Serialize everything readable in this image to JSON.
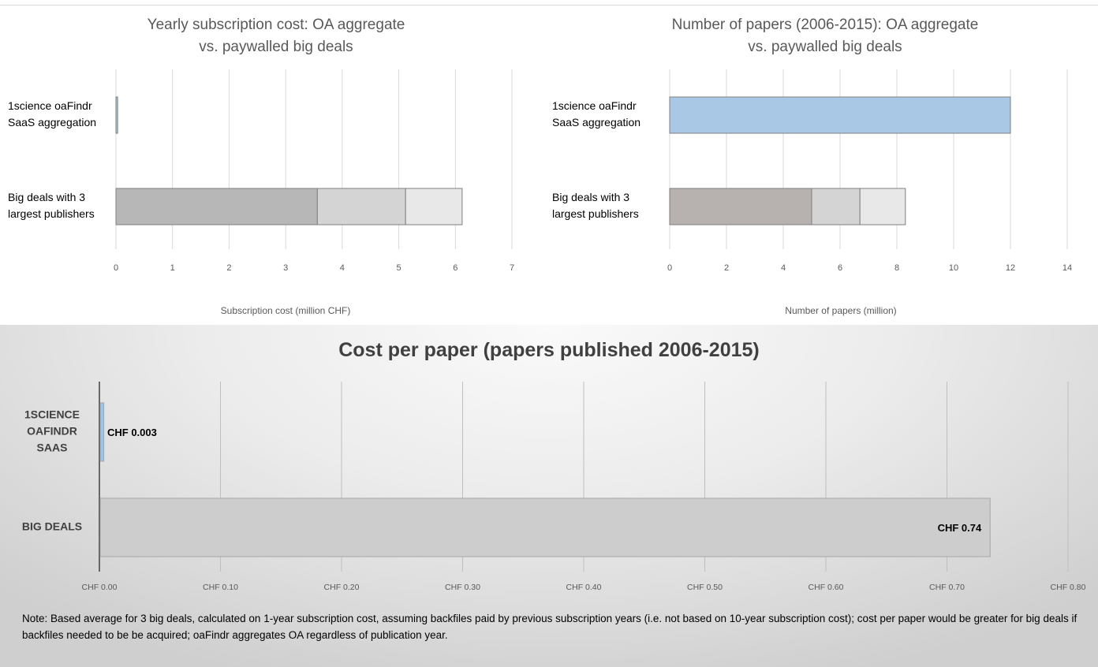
{
  "chart_data": [
    {
      "type": "bar",
      "orientation": "horizontal",
      "stacked": true,
      "title": "Yearly subscription cost: OA aggregate\nvs. paywalled big deals",
      "xlabel": "Subscription cost (million CHF)",
      "categories": [
        "1science oaFindr\nSaaS aggregation",
        "Big deals with 3\nlargest publishers"
      ],
      "series": [
        {
          "values": [
            0.03,
            3.56
          ],
          "colors": [
            "#a9c8e6",
            "#b7b7b7"
          ]
        },
        {
          "values": [
            0,
            1.56
          ],
          "colors": [
            "#a9c8e6",
            "#d4d4d4"
          ]
        },
        {
          "values": [
            0,
            1.0
          ],
          "colors": [
            "#a9c8e6",
            "#e8e8e8"
          ]
        }
      ],
      "xlim": [
        0,
        7
      ],
      "xticks": [
        0,
        1,
        2,
        3,
        4,
        5,
        6,
        7
      ],
      "grid": true
    },
    {
      "type": "bar",
      "orientation": "horizontal",
      "stacked": true,
      "title": "Number of papers (2006-2015): OA aggregate\nvs. paywalled big deals",
      "xlabel": "Number of papers (million)",
      "categories": [
        "1science oaFindr\nSaaS aggregation",
        "Big deals with 3\nlargest publishers"
      ],
      "series": [
        {
          "values": [
            12.0,
            5.0
          ],
          "colors": [
            "#a9c8e6",
            "#b7b2af"
          ]
        },
        {
          "values": [
            0,
            1.7
          ],
          "colors": [
            "#a9c8e6",
            "#d4d4d4"
          ]
        },
        {
          "values": [
            0,
            1.6
          ],
          "colors": [
            "#a9c8e6",
            "#e8e8e8"
          ]
        }
      ],
      "xlim": [
        0,
        14
      ],
      "xticks": [
        0,
        2,
        4,
        6,
        8,
        10,
        12,
        14
      ],
      "grid": true
    },
    {
      "type": "bar",
      "orientation": "horizontal",
      "title": "Cost per paper (papers published 2006-2015)",
      "xlabel": "",
      "categories": [
        "1SCIENCE\nOAFINDR\nSAAS",
        "BIG DEALS"
      ],
      "values": [
        0.003,
        0.735
      ],
      "data_labels": [
        "CHF 0.003",
        "CHF 0.74"
      ],
      "colors": [
        "#9dc3e6",
        "#cdcdcd"
      ],
      "xlim": [
        0,
        0.8
      ],
      "xticks": [
        "CHF 0.00",
        "CHF 0.10",
        "CHF 0.20",
        "CHF 0.30",
        "CHF 0.40",
        "CHF 0.50",
        "CHF 0.60",
        "CHF 0.70",
        "CHF 0.80"
      ],
      "grid": true
    }
  ],
  "note": "Note: Based average for 3 big deals, calculated on 1-year subscription cost, assuming backfiles paid by previous subscription years (i.e. not based on 10-year subscription cost); cost per paper would be greater for big deals if backfiles needed to be be acquired; oaFindr aggregates OA regardless of publication year."
}
